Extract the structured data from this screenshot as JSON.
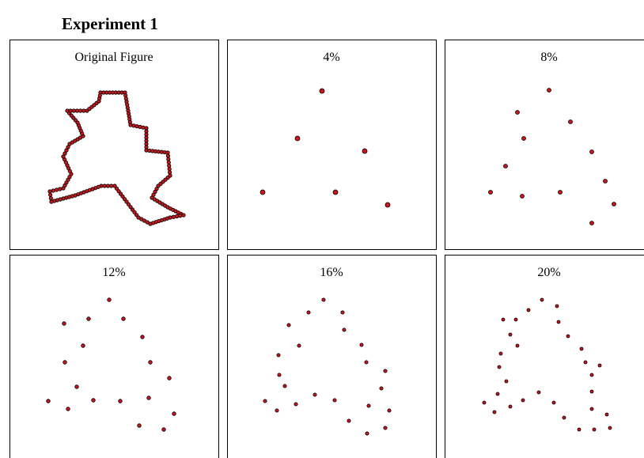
{
  "header": {
    "title": "Experiment 1"
  },
  "panels": [
    {
      "label": "Original Figure"
    },
    {
      "label": "4%"
    },
    {
      "label": "8%"
    },
    {
      "label": "12%"
    },
    {
      "label": "16%"
    },
    {
      "label": "20%"
    }
  ]
}
